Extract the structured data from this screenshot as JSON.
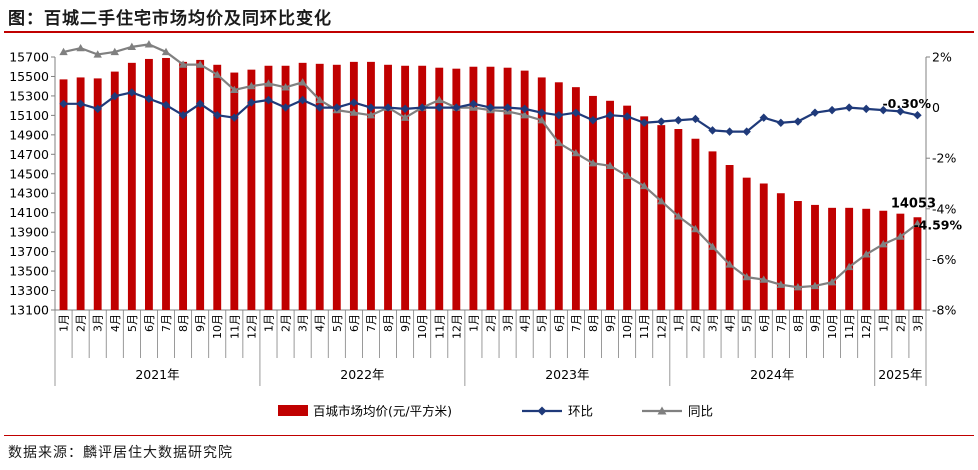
{
  "title": "图：百城二手住宅市场均价及同环比变化",
  "source": "数据来源：麟评居住大数据研究院",
  "chart_data": {
    "type": "bar",
    "categories": [
      "1月",
      "2月",
      "3月",
      "4月",
      "5月",
      "6月",
      "7月",
      "8月",
      "9月",
      "10月",
      "11月",
      "12月",
      "1月",
      "2月",
      "3月",
      "4月",
      "5月",
      "6月",
      "7月",
      "8月",
      "9月",
      "10月",
      "11月",
      "12月",
      "1月",
      "2月",
      "3月",
      "4月",
      "5月",
      "6月",
      "7月",
      "8月",
      "9月",
      "10月",
      "11月",
      "12月",
      "1月",
      "2月",
      "3月",
      "4月",
      "5月",
      "6月",
      "7月",
      "8月",
      "9月",
      "10月",
      "11月",
      "12月",
      "1月",
      "2月",
      "3月"
    ],
    "years": [
      {
        "label": "2021年",
        "count": 12
      },
      {
        "label": "2022年",
        "count": 12
      },
      {
        "label": "2023年",
        "count": 12
      },
      {
        "label": "2024年",
        "count": 12
      },
      {
        "label": "2025年",
        "count": 3
      }
    ],
    "series": [
      {
        "name": "百城市场均价(元/平方米)",
        "kind": "bar",
        "axis": "left",
        "color": "#c00000",
        "values": [
          15470,
          15490,
          15480,
          15550,
          15640,
          15680,
          15690,
          15650,
          15670,
          15620,
          15540,
          15570,
          15610,
          15610,
          15640,
          15630,
          15620,
          15650,
          15650,
          15620,
          15610,
          15610,
          15590,
          15580,
          15600,
          15600,
          15590,
          15560,
          15490,
          15440,
          15390,
          15300,
          15250,
          15200,
          15090,
          15000,
          14960,
          14860,
          14730,
          14590,
          14460,
          14400,
          14300,
          14220,
          14180,
          14150,
          14150,
          14140,
          14120,
          14090,
          14053
        ]
      },
      {
        "name": "环比",
        "kind": "line",
        "axis": "right",
        "color": "#1f3a7a",
        "marker": "diamond",
        "values": [
          0.15,
          0.15,
          -0.05,
          0.45,
          0.6,
          0.35,
          0.1,
          -0.3,
          0.15,
          -0.3,
          -0.4,
          0.2,
          0.3,
          0.0,
          0.3,
          0.0,
          0.0,
          0.2,
          0.0,
          0.0,
          -0.05,
          0.0,
          0.0,
          0.0,
          0.15,
          0.0,
          0.0,
          -0.05,
          -0.2,
          -0.3,
          -0.2,
          -0.5,
          -0.3,
          -0.35,
          -0.6,
          -0.55,
          -0.5,
          -0.45,
          -0.9,
          -0.95,
          -0.95,
          -0.4,
          -0.6,
          -0.55,
          -0.2,
          -0.1,
          0.0,
          -0.05,
          -0.1,
          -0.15,
          -0.3
        ]
      },
      {
        "name": "同比",
        "kind": "line",
        "axis": "right",
        "color": "#808080",
        "marker": "triangle",
        "values": [
          2.2,
          2.35,
          2.1,
          2.2,
          2.4,
          2.5,
          2.2,
          1.7,
          1.7,
          1.3,
          0.7,
          0.85,
          0.95,
          0.8,
          1.0,
          0.3,
          -0.1,
          -0.2,
          -0.3,
          0.0,
          -0.4,
          0.0,
          0.3,
          0.0,
          0.0,
          -0.1,
          -0.15,
          -0.3,
          -0.5,
          -1.4,
          -1.8,
          -2.2,
          -2.3,
          -2.7,
          -3.1,
          -3.7,
          -4.3,
          -4.8,
          -5.5,
          -6.2,
          -6.7,
          -6.8,
          -7.0,
          -7.1,
          -7.05,
          -6.9,
          -6.3,
          -5.8,
          -5.4,
          -5.1,
          -4.59
        ]
      }
    ],
    "yleft": {
      "min": 13100,
      "max": 15700,
      "step": 200
    },
    "yright": {
      "min": -8,
      "max": 2,
      "ticks": [
        "-8%",
        "-6%",
        "-4%",
        "-2%",
        "0",
        "2%"
      ],
      "values": [
        -8,
        -6,
        -4,
        -2,
        0,
        2
      ]
    },
    "annotations": [
      {
        "text": "14053",
        "series": 0,
        "index": 50
      },
      {
        "text": "-0.30%",
        "series": 1,
        "index": 50
      },
      {
        "text": "-4.59%",
        "series": 2,
        "index": 50
      }
    ],
    "legend_position": "bottom"
  }
}
